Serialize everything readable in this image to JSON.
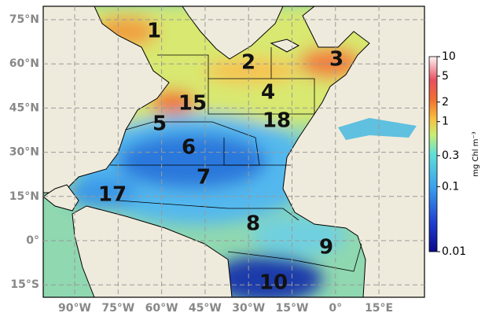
{
  "map": {
    "lat_labels": [
      "75°N",
      "60°N",
      "45°N",
      "30°N",
      "15°N",
      "0°",
      "15°S"
    ],
    "lon_labels": [
      "90°W",
      "75°W",
      "60°W",
      "45°W",
      "30°W",
      "15°W",
      "0°",
      "15°E"
    ],
    "regions": [
      "1",
      "2",
      "3",
      "4",
      "15",
      "5",
      "18",
      "6",
      "7",
      "17",
      "8",
      "9",
      "10"
    ],
    "colorbar": {
      "label": "mg Chl m⁻³",
      "lim": [
        0.01,
        10
      ],
      "scale": "log",
      "ticks": [
        10,
        5,
        2,
        1,
        0.3,
        0.1,
        0.01
      ]
    }
  }
}
